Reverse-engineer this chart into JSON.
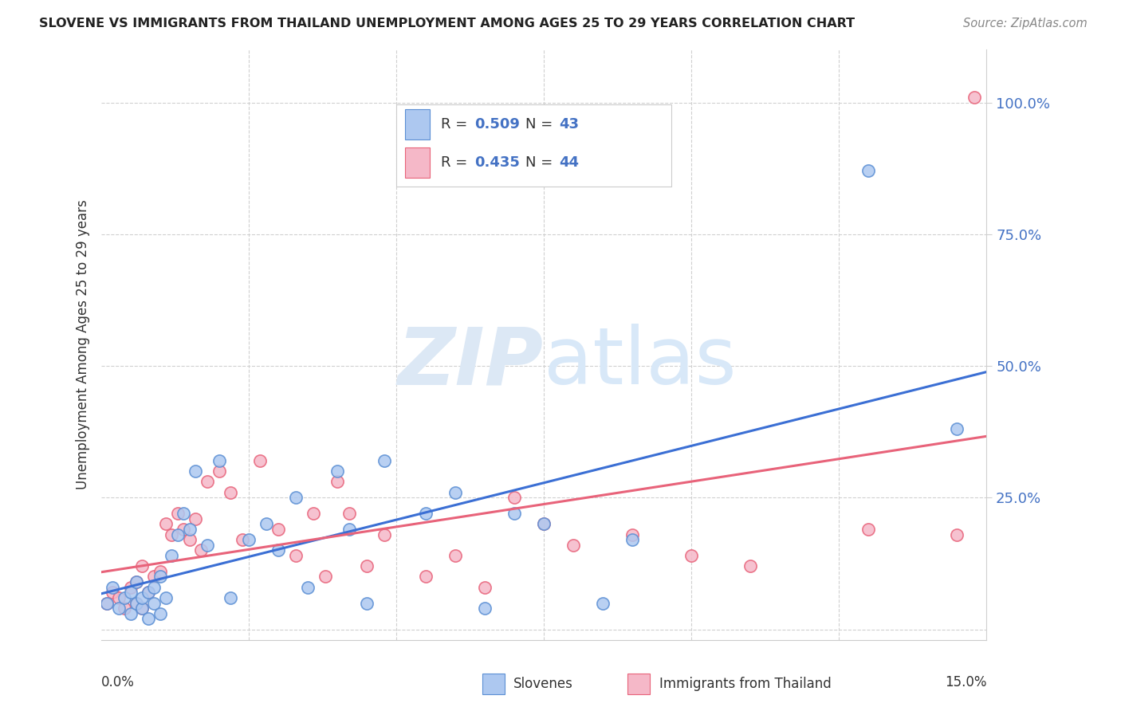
{
  "title": "SLOVENE VS IMMIGRANTS FROM THAILAND UNEMPLOYMENT AMONG AGES 25 TO 29 YEARS CORRELATION CHART",
  "source": "Source: ZipAtlas.com",
  "ylabel": "Unemployment Among Ages 25 to 29 years",
  "xlim": [
    0.0,
    0.15
  ],
  "ylim": [
    -0.02,
    1.1
  ],
  "slovene_R": 0.509,
  "slovene_N": 43,
  "thailand_R": 0.435,
  "thailand_N": 44,
  "slovene_color": "#adc8f0",
  "thailand_color": "#f5b8c8",
  "slovene_edge_color": "#5b8fd4",
  "thailand_edge_color": "#e8637a",
  "slovene_line_color": "#3b6fd4",
  "thailand_line_color": "#e8637a",
  "background_color": "#ffffff",
  "watermark_zip": "ZIP",
  "watermark_atlas": "atlas",
  "watermark_color": "#dce8f5",
  "legend_label_1": "Slovenes",
  "legend_label_2": "Immigrants from Thailand",
  "slovene_x": [
    0.001,
    0.002,
    0.003,
    0.004,
    0.005,
    0.005,
    0.006,
    0.006,
    0.007,
    0.007,
    0.008,
    0.008,
    0.009,
    0.009,
    0.01,
    0.01,
    0.011,
    0.012,
    0.013,
    0.014,
    0.015,
    0.016,
    0.018,
    0.02,
    0.022,
    0.025,
    0.028,
    0.03,
    0.033,
    0.035,
    0.04,
    0.042,
    0.045,
    0.048,
    0.055,
    0.06,
    0.065,
    0.07,
    0.075,
    0.085,
    0.09,
    0.13,
    0.145
  ],
  "slovene_y": [
    0.05,
    0.08,
    0.04,
    0.06,
    0.03,
    0.07,
    0.05,
    0.09,
    0.04,
    0.06,
    0.07,
    0.02,
    0.08,
    0.05,
    0.03,
    0.1,
    0.06,
    0.14,
    0.18,
    0.22,
    0.19,
    0.3,
    0.16,
    0.32,
    0.06,
    0.17,
    0.2,
    0.15,
    0.25,
    0.08,
    0.3,
    0.19,
    0.05,
    0.32,
    0.22,
    0.26,
    0.04,
    0.22,
    0.2,
    0.05,
    0.17,
    0.87,
    0.38
  ],
  "thailand_x": [
    0.001,
    0.002,
    0.003,
    0.004,
    0.005,
    0.006,
    0.006,
    0.007,
    0.007,
    0.008,
    0.009,
    0.01,
    0.011,
    0.012,
    0.013,
    0.014,
    0.015,
    0.016,
    0.017,
    0.018,
    0.02,
    0.022,
    0.024,
    0.027,
    0.03,
    0.033,
    0.036,
    0.038,
    0.04,
    0.042,
    0.045,
    0.048,
    0.055,
    0.06,
    0.065,
    0.07,
    0.075,
    0.08,
    0.09,
    0.1,
    0.11,
    0.13,
    0.145,
    0.148
  ],
  "thailand_y": [
    0.05,
    0.07,
    0.06,
    0.04,
    0.08,
    0.05,
    0.09,
    0.04,
    0.12,
    0.07,
    0.1,
    0.11,
    0.2,
    0.18,
    0.22,
    0.19,
    0.17,
    0.21,
    0.15,
    0.28,
    0.3,
    0.26,
    0.17,
    0.32,
    0.19,
    0.14,
    0.22,
    0.1,
    0.28,
    0.22,
    0.12,
    0.18,
    0.1,
    0.14,
    0.08,
    0.25,
    0.2,
    0.16,
    0.18,
    0.14,
    0.12,
    0.19,
    0.18,
    1.01
  ]
}
